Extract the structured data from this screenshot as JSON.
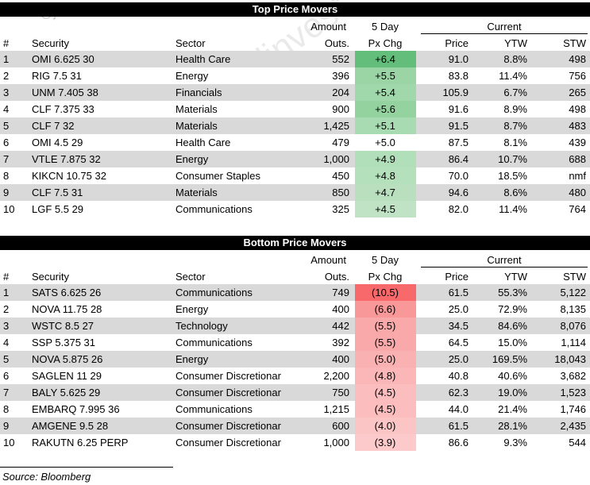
{
  "watermark": "@junkbondinvest",
  "tables": [
    {
      "title": "Top Price Movers",
      "header_top": [
        "Amount",
        "5 Day",
        "Current"
      ],
      "header": [
        "#",
        "Security",
        "Sector",
        "Outs.",
        "Px Chg",
        "Price",
        "YTW",
        "STW"
      ],
      "rows": [
        [
          "1",
          "OMI 6.625 30",
          "Health Care",
          "552",
          "+6.4",
          "91.0",
          "8.8%",
          "498"
        ],
        [
          "2",
          "RIG 7.5 31",
          "Energy",
          "396",
          "+5.5",
          "83.8",
          "11.4%",
          "756"
        ],
        [
          "3",
          "UNM 7.405 38",
          "Financials",
          "204",
          "+5.4",
          "105.9",
          "6.7%",
          "265"
        ],
        [
          "4",
          "CLF 7.375 33",
          "Materials",
          "900",
          "+5.6",
          "91.6",
          "8.9%",
          "498"
        ],
        [
          "5",
          "CLF 7 32",
          "Materials",
          "1,425",
          "+5.1",
          "91.5",
          "8.7%",
          "483"
        ],
        [
          "6",
          "OMI 4.5 29",
          "Health Care",
          "479",
          "+5.0",
          "87.5",
          "8.1%",
          "439"
        ],
        [
          "7",
          "VTLE 7.875 32",
          "Energy",
          "1,000",
          "+4.9",
          "86.4",
          "10.7%",
          "688"
        ],
        [
          "8",
          "KIKCN 10.75 32",
          "Consumer Staples",
          "450",
          "+4.8",
          "70.0",
          "18.5%",
          "nmf"
        ],
        [
          "9",
          "CLF 7.5 31",
          "Materials",
          "850",
          "+4.7",
          "94.6",
          "8.6%",
          "480"
        ],
        [
          "10",
          "LGF 5.5 29",
          "Communications",
          "325",
          "+4.5",
          "82.0",
          "11.4%",
          "764"
        ]
      ]
    },
    {
      "title": "Bottom Price Movers",
      "header_top": [
        "Amount",
        "5 Day",
        "Current"
      ],
      "header": [
        "#",
        "Security",
        "Sector",
        "Outs.",
        "Px Chg",
        "Price",
        "YTW",
        "STW"
      ],
      "rows": [
        [
          "1",
          "SATS 6.625 26",
          "Communications",
          "749",
          "(10.5)",
          "61.5",
          "55.3%",
          "5,122"
        ],
        [
          "2",
          "NOVA 11.75 28",
          "Energy",
          "400",
          "(6.6)",
          "25.0",
          "72.9%",
          "8,135"
        ],
        [
          "3",
          "WSTC 8.5 27",
          "Technology",
          "442",
          "(5.5)",
          "34.5",
          "84.6%",
          "8,076"
        ],
        [
          "4",
          "SSP 5.375 31",
          "Communications",
          "392",
          "(5.5)",
          "64.5",
          "15.0%",
          "1,114"
        ],
        [
          "5",
          "NOVA 5.875 26",
          "Energy",
          "400",
          "(5.0)",
          "25.0",
          "169.5%",
          "18,043"
        ],
        [
          "6",
          "SAGLEN 11 29",
          "Consumer Discretionar",
          "2,200",
          "(4.8)",
          "40.8",
          "40.6%",
          "3,682"
        ],
        [
          "7",
          "BALY 5.625 29",
          "Consumer Discretionar",
          "750",
          "(4.5)",
          "62.3",
          "19.0%",
          "1,523"
        ],
        [
          "8",
          "EMBARQ 7.995 36",
          "Communications",
          "1,215",
          "(4.5)",
          "44.0",
          "21.4%",
          "1,746"
        ],
        [
          "9",
          "AMGENE 9.5 28",
          "Consumer Discretionar",
          "600",
          "(4.0)",
          "61.5",
          "28.1%",
          "2,435"
        ],
        [
          "10",
          "RAKUTN 6.25 PERP",
          "Consumer Discretionar",
          "1,000",
          "(3.9)",
          "86.6",
          "9.3%",
          "544"
        ]
      ]
    }
  ],
  "source": "Source: Bloomberg"
}
